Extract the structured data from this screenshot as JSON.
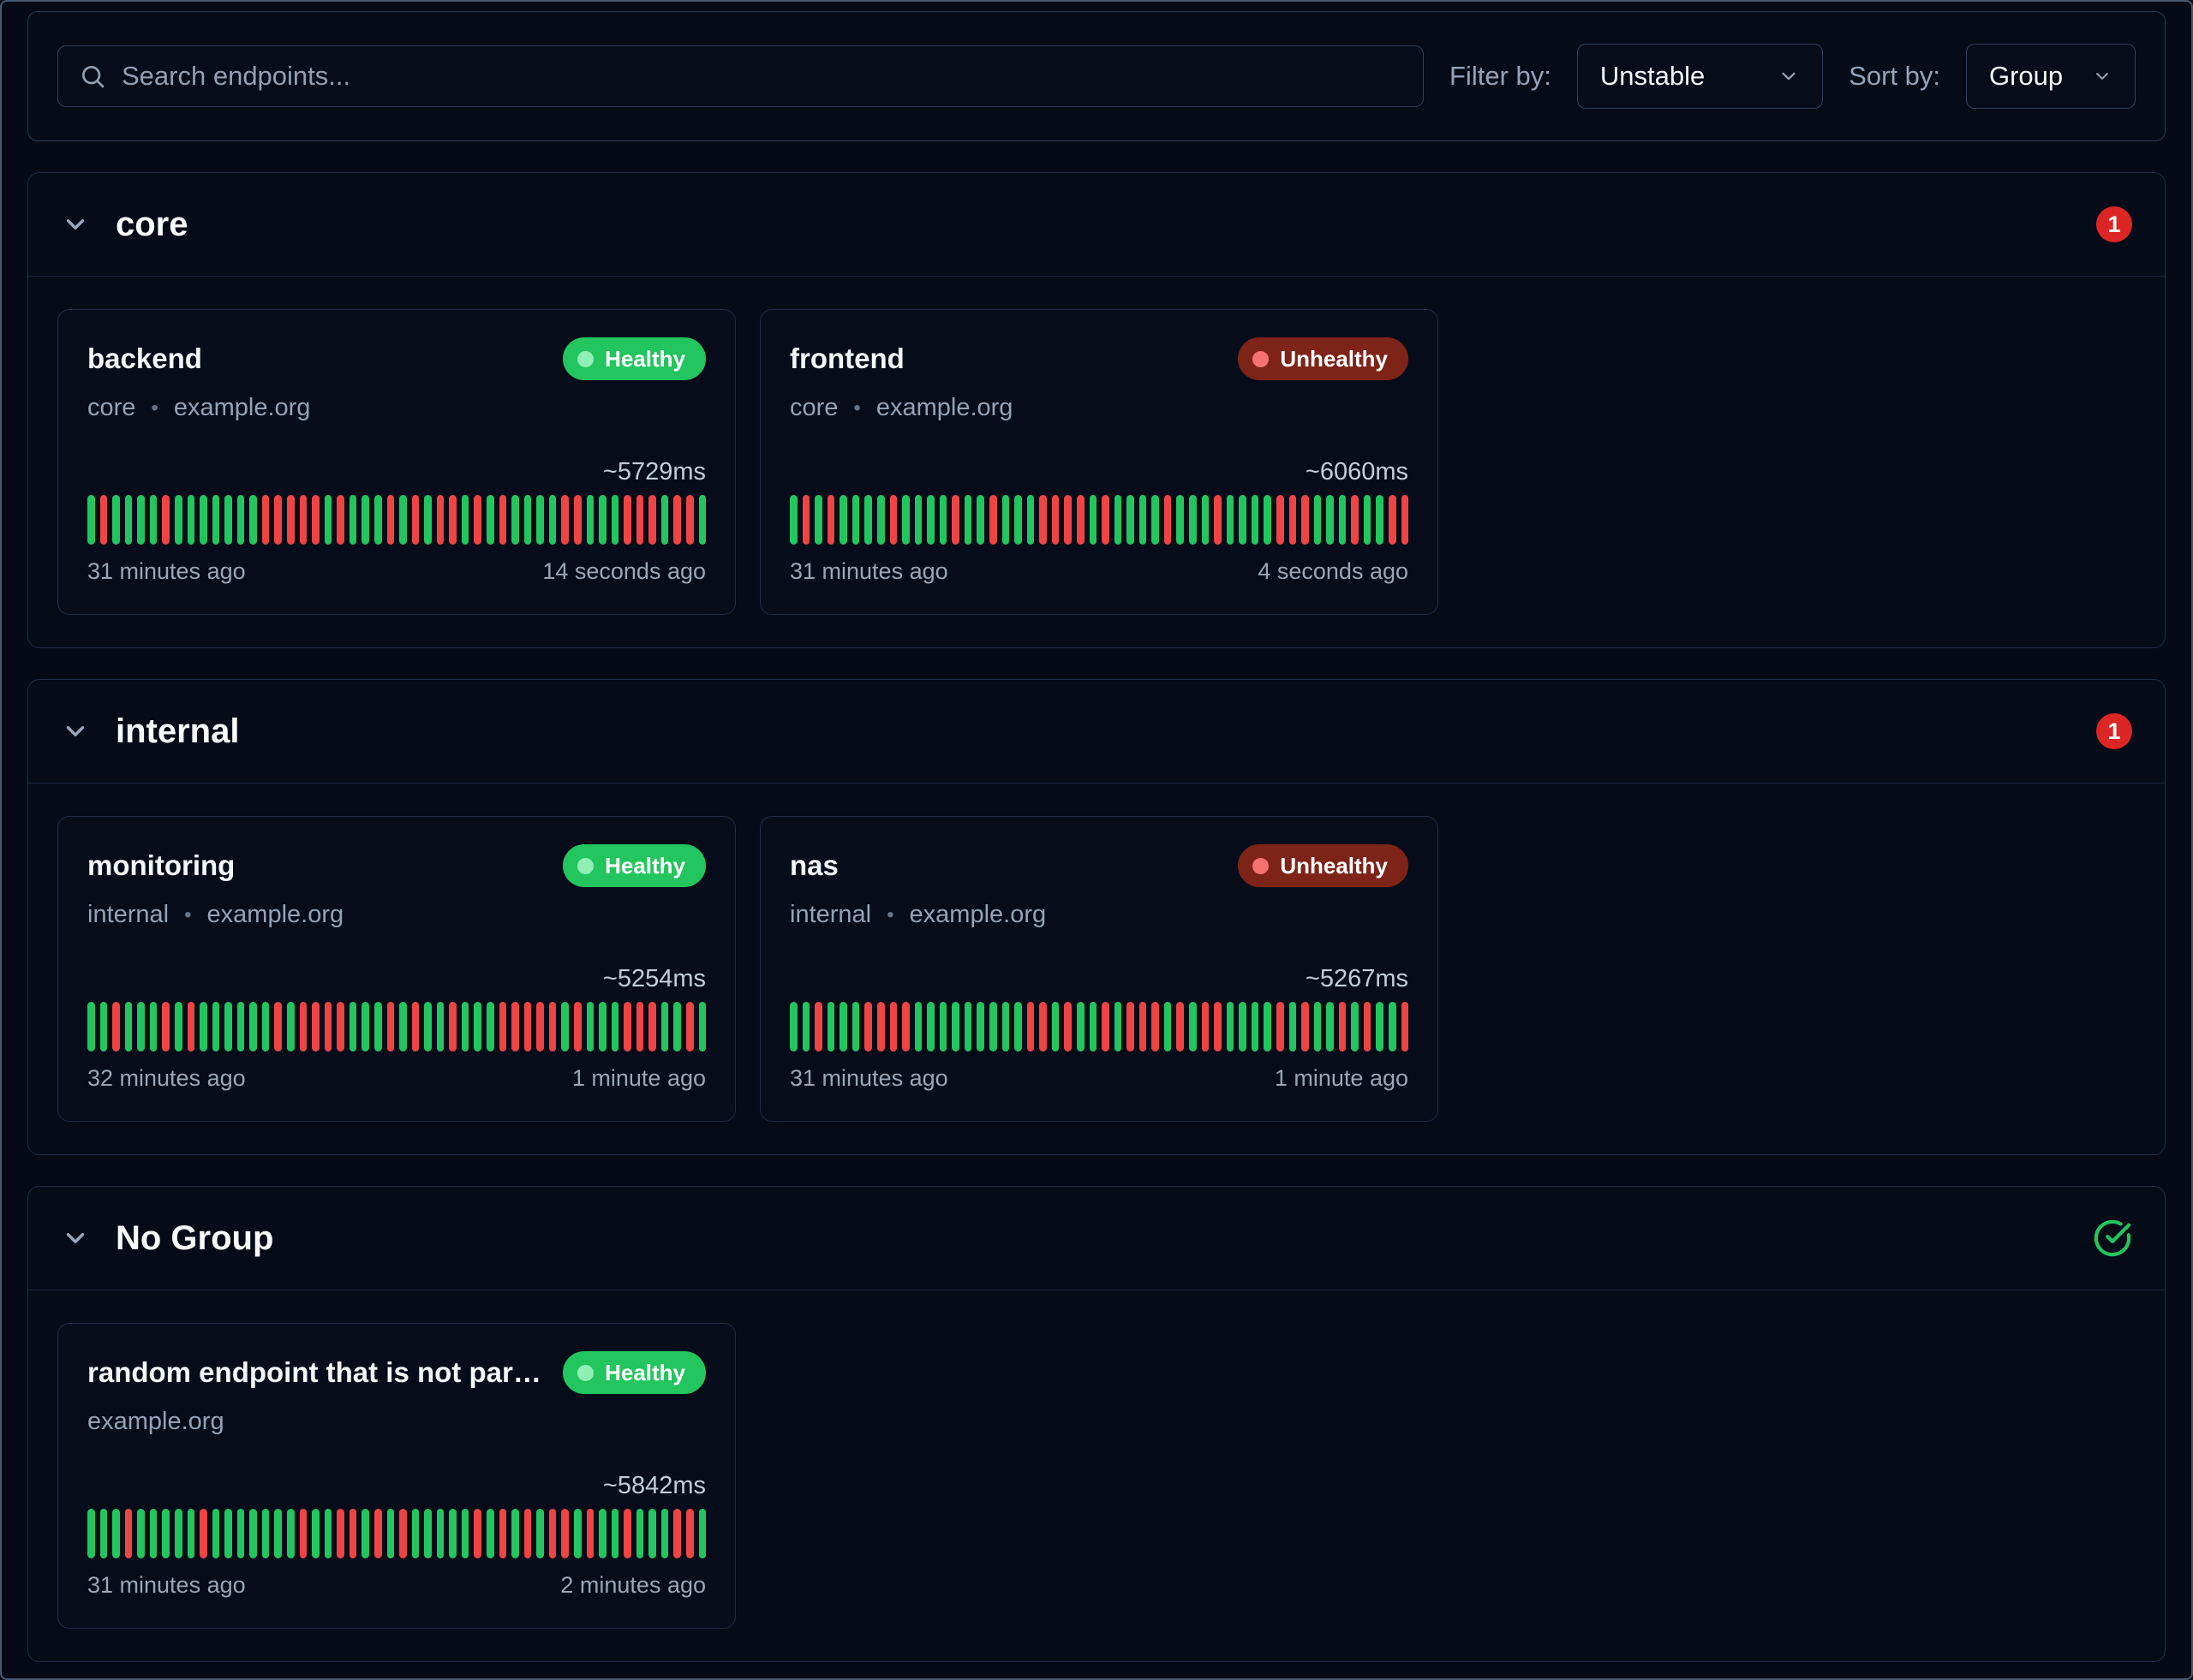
{
  "toolbar": {
    "search": {
      "placeholder": "Search endpoints...",
      "value": ""
    },
    "filter": {
      "label": "Filter by:",
      "value": "Unstable"
    },
    "sort": {
      "label": "Sort by:",
      "value": "Group"
    }
  },
  "colors": {
    "page_bg": "#050a16",
    "healthy": "#23c55e",
    "healthy_dot": "#90efb5",
    "unhealthy_badge": "#7e2318",
    "unhealthy_dot": "#f87171",
    "bar_up": "#23c55e",
    "bar_down": "#ee4444",
    "count_badge": "#dc2626",
    "check_icon": "#22c55e"
  },
  "icons": {
    "search": "search-icon",
    "collapse": "chevron-down-icon",
    "all_healthy": "check-circle-icon"
  },
  "groups": [
    {
      "name": "core",
      "count_badge": "1",
      "cards": [
        {
          "name": "backend",
          "status_label": "Healthy",
          "group": "core",
          "sep": "•",
          "host": "example.org",
          "latency": "~5729ms",
          "oldest": "31 minutes ago",
          "newest": "14 seconds ago",
          "history": "grggggrgggggggrrrrrgrgggrgrgrrgrgrggggrrgggrrrgrrg"
        },
        {
          "name": "frontend",
          "status_label": "Unhealthy",
          "group": "core",
          "sep": "•",
          "host": "example.org",
          "latency": "~6060ms",
          "oldest": "31 minutes ago",
          "newest": "4 seconds ago",
          "history": "grgrggggrggggrggrgggrrrrgrggggrgggrggggrrrgggrggrr"
        }
      ]
    },
    {
      "name": "internal",
      "count_badge": "1",
      "cards": [
        {
          "name": "monitoring",
          "status_label": "Healthy",
          "group": "internal",
          "sep": "•",
          "host": "example.org",
          "latency": "~5254ms",
          "oldest": "32 minutes ago",
          "newest": "1 minute ago",
          "history": "ggrgggrgrggggggrgrrrrgggrgrggrgggrrrrrgrgggrrrggrg"
        },
        {
          "name": "nas",
          "status_label": "Unhealthy",
          "group": "internal",
          "sep": "•",
          "host": "example.org",
          "latency": "~5267ms",
          "oldest": "31 minutes ago",
          "newest": "1 minute ago",
          "history": "ggrgggrrrrgggggggggrrgrggrgrrrgrgrrggggrgrggrgrggr"
        }
      ]
    },
    {
      "name": "No Group",
      "cards": [
        {
          "name": "random endpoint that is not part...",
          "status_label": "Healthy",
          "host": "example.org",
          "latency": "~5842ms",
          "oldest": "31 minutes ago",
          "newest": "2 minutes ago",
          "history": "gggrgggggrgggggggrggrrgrgrgggggrgrgrgrrgrggrgggrrg"
        }
      ]
    }
  ]
}
